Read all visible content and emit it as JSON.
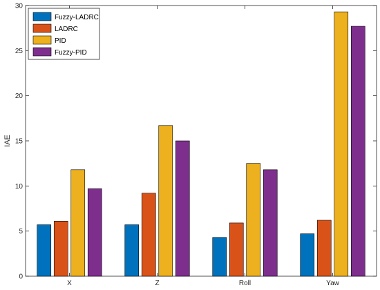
{
  "chart_data": {
    "type": "bar",
    "categories": [
      "X",
      "Z",
      "Roll",
      "Yaw"
    ],
    "series": [
      {
        "name": "Fuzzy-LADRC",
        "values": [
          5.7,
          5.7,
          4.3,
          4.7
        ],
        "color": "#0072BD"
      },
      {
        "name": "LADRC",
        "values": [
          6.1,
          9.2,
          5.9,
          6.2
        ],
        "color": "#D95319"
      },
      {
        "name": "PID",
        "values": [
          11.8,
          16.7,
          12.5,
          29.3
        ],
        "color": "#EDB120"
      },
      {
        "name": "Fuzzy-PID",
        "values": [
          9.7,
          15.0,
          11.8,
          27.7
        ],
        "color": "#7E2F8E"
      }
    ],
    "ylabel": "IAE",
    "xlabel": "",
    "ylim": [
      0,
      30
    ],
    "yticks": [
      0,
      5,
      10,
      15,
      20,
      25,
      30
    ],
    "legend_position": "top-left",
    "grid": false
  }
}
